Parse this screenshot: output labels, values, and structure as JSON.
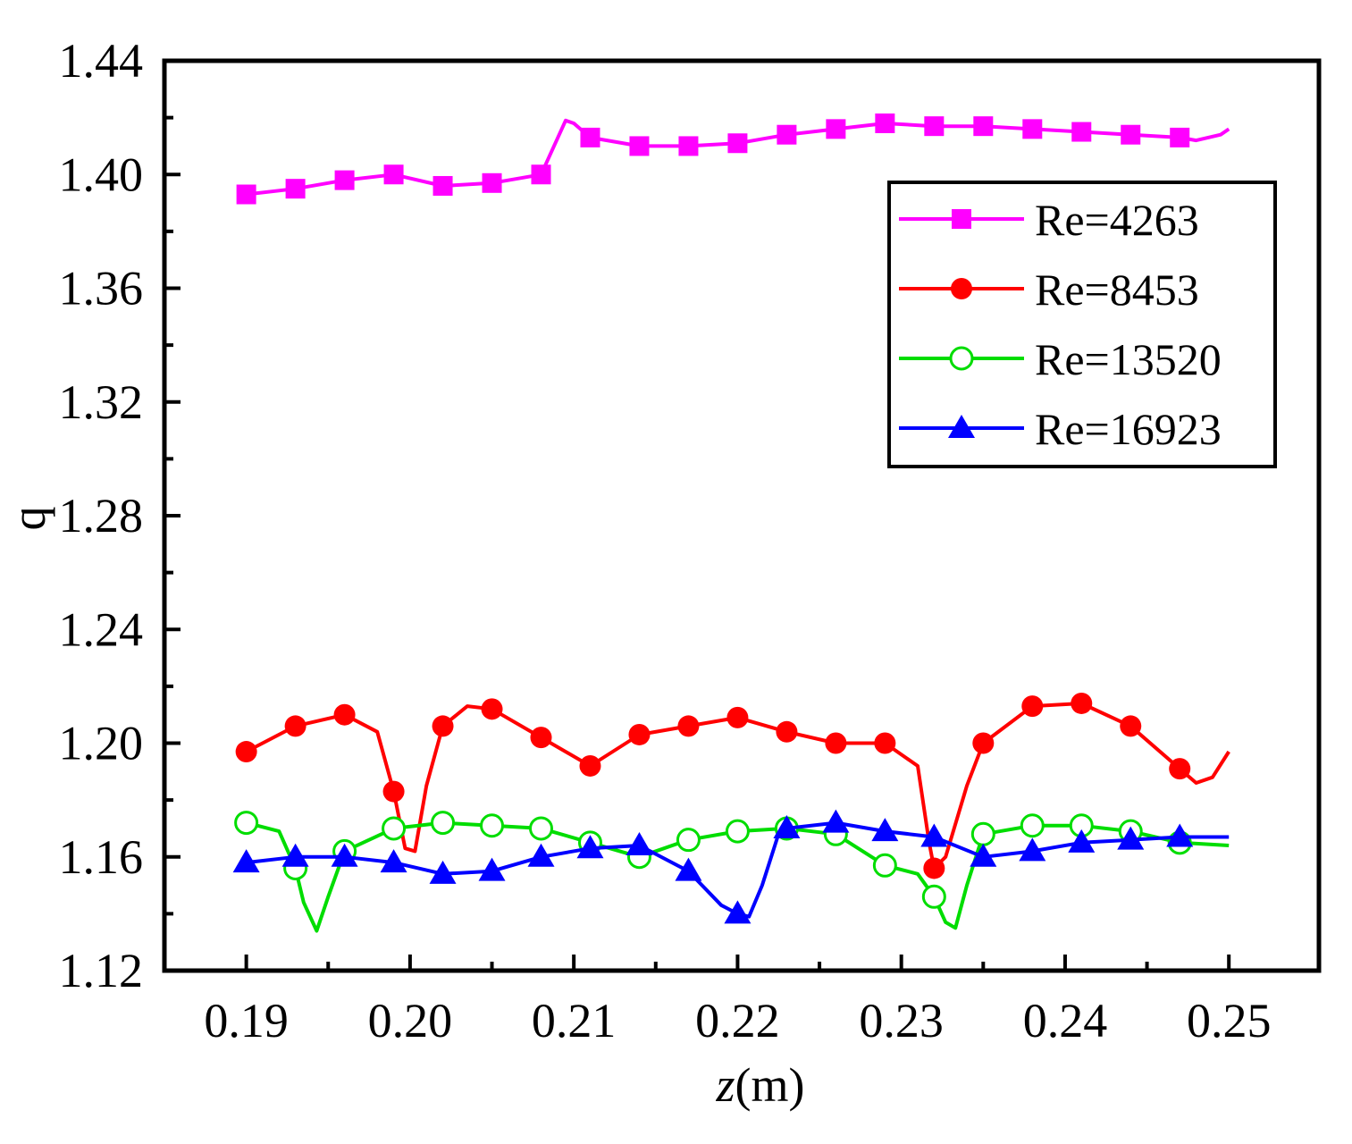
{
  "chart_data": {
    "type": "line",
    "title": "",
    "xlabel_italic": "z",
    "xlabel_unit": "(m)",
    "ylabel": "q",
    "xlim": [
      0.185,
      0.2555
    ],
    "ylim": [
      1.12,
      1.44
    ],
    "xticks": [
      0.19,
      0.2,
      0.21,
      0.22,
      0.23,
      0.24,
      0.25
    ],
    "xtick_labels": [
      "0.19",
      "0.20",
      "0.21",
      "0.22",
      "0.23",
      "0.24",
      "0.25"
    ],
    "yticks": [
      1.12,
      1.16,
      1.2,
      1.24,
      1.28,
      1.32,
      1.36,
      1.4,
      1.44
    ],
    "ytick_labels": [
      "1.12",
      "1.16",
      "1.20",
      "1.24",
      "1.28",
      "1.32",
      "1.36",
      "1.40",
      "1.44"
    ],
    "legend_position": "top-right",
    "series": [
      {
        "name": "Re=4263",
        "color": "#ff00ff",
        "marker": "square",
        "line_x": [
          0.19,
          0.193,
          0.196,
          0.199,
          0.202,
          0.205,
          0.208,
          0.2095,
          0.21,
          0.211,
          0.214,
          0.217,
          0.22,
          0.223,
          0.226,
          0.229,
          0.232,
          0.235,
          0.238,
          0.241,
          0.244,
          0.247,
          0.248,
          0.2495,
          0.25
        ],
        "line_y": [
          1.393,
          1.395,
          1.398,
          1.4,
          1.396,
          1.397,
          1.4,
          1.419,
          1.418,
          1.413,
          1.41,
          1.41,
          1.411,
          1.414,
          1.416,
          1.418,
          1.417,
          1.417,
          1.416,
          1.415,
          1.414,
          1.413,
          1.412,
          1.414,
          1.416
        ],
        "marker_x": [
          0.19,
          0.193,
          0.196,
          0.199,
          0.202,
          0.205,
          0.208,
          0.211,
          0.214,
          0.217,
          0.22,
          0.223,
          0.226,
          0.229,
          0.232,
          0.235,
          0.238,
          0.241,
          0.244,
          0.247
        ],
        "marker_y": [
          1.393,
          1.395,
          1.398,
          1.4,
          1.396,
          1.397,
          1.4,
          1.413,
          1.41,
          1.41,
          1.411,
          1.414,
          1.416,
          1.418,
          1.417,
          1.417,
          1.416,
          1.415,
          1.414,
          1.413
        ]
      },
      {
        "name": "Re=8453",
        "color": "#ff0000",
        "marker": "circle",
        "line_x": [
          0.19,
          0.193,
          0.196,
          0.198,
          0.199,
          0.1997,
          0.2003,
          0.201,
          0.202,
          0.2035,
          0.205,
          0.208,
          0.211,
          0.214,
          0.217,
          0.22,
          0.223,
          0.226,
          0.229,
          0.231,
          0.2317,
          0.232,
          0.2327,
          0.234,
          0.235,
          0.238,
          0.241,
          0.244,
          0.247,
          0.248,
          0.249,
          0.25
        ],
        "line_y": [
          1.197,
          1.206,
          1.21,
          1.204,
          1.183,
          1.163,
          1.162,
          1.185,
          1.206,
          1.213,
          1.212,
          1.202,
          1.192,
          1.203,
          1.206,
          1.209,
          1.204,
          1.2,
          1.2,
          1.192,
          1.165,
          1.156,
          1.16,
          1.185,
          1.2,
          1.213,
          1.214,
          1.206,
          1.191,
          1.186,
          1.188,
          1.197
        ],
        "marker_x": [
          0.19,
          0.193,
          0.196,
          0.199,
          0.202,
          0.205,
          0.208,
          0.211,
          0.214,
          0.217,
          0.22,
          0.223,
          0.226,
          0.229,
          0.232,
          0.235,
          0.238,
          0.241,
          0.244,
          0.247
        ],
        "marker_y": [
          1.197,
          1.206,
          1.21,
          1.183,
          1.206,
          1.212,
          1.202,
          1.192,
          1.203,
          1.206,
          1.209,
          1.204,
          1.2,
          1.2,
          1.156,
          1.2,
          1.213,
          1.214,
          1.206,
          1.191
        ]
      },
      {
        "name": "Re=13520",
        "color": "#00dd00",
        "marker": "open-circle",
        "line_x": [
          0.19,
          0.192,
          0.193,
          0.1935,
          0.1943,
          0.195,
          0.196,
          0.199,
          0.202,
          0.205,
          0.208,
          0.211,
          0.214,
          0.217,
          0.22,
          0.223,
          0.226,
          0.229,
          0.231,
          0.232,
          0.2327,
          0.2333,
          0.234,
          0.235,
          0.238,
          0.241,
          0.244,
          0.247,
          0.25
        ],
        "line_y": [
          1.172,
          1.169,
          1.156,
          1.144,
          1.134,
          1.146,
          1.162,
          1.17,
          1.172,
          1.171,
          1.17,
          1.165,
          1.16,
          1.166,
          1.169,
          1.17,
          1.168,
          1.157,
          1.154,
          1.146,
          1.137,
          1.135,
          1.15,
          1.168,
          1.171,
          1.171,
          1.169,
          1.165,
          1.164
        ],
        "marker_x": [
          0.19,
          0.193,
          0.196,
          0.199,
          0.202,
          0.205,
          0.208,
          0.211,
          0.214,
          0.217,
          0.22,
          0.223,
          0.226,
          0.229,
          0.232,
          0.235,
          0.238,
          0.241,
          0.244,
          0.247
        ],
        "marker_y": [
          1.172,
          1.156,
          1.162,
          1.17,
          1.172,
          1.171,
          1.17,
          1.165,
          1.16,
          1.166,
          1.169,
          1.17,
          1.168,
          1.157,
          1.146,
          1.168,
          1.171,
          1.171,
          1.169,
          1.165
        ]
      },
      {
        "name": "Re=16923",
        "color": "#0000ff",
        "marker": "triangle",
        "line_x": [
          0.19,
          0.193,
          0.196,
          0.199,
          0.202,
          0.205,
          0.208,
          0.211,
          0.214,
          0.217,
          0.219,
          0.22,
          0.2207,
          0.2215,
          0.2225,
          0.223,
          0.226,
          0.229,
          0.232,
          0.235,
          0.238,
          0.241,
          0.244,
          0.247,
          0.25
        ],
        "line_y": [
          1.158,
          1.16,
          1.16,
          1.158,
          1.154,
          1.155,
          1.16,
          1.163,
          1.164,
          1.155,
          1.143,
          1.14,
          1.139,
          1.15,
          1.168,
          1.17,
          1.172,
          1.169,
          1.167,
          1.16,
          1.162,
          1.165,
          1.166,
          1.167,
          1.167
        ],
        "marker_x": [
          0.19,
          0.193,
          0.196,
          0.199,
          0.202,
          0.205,
          0.208,
          0.211,
          0.214,
          0.217,
          0.22,
          0.223,
          0.226,
          0.229,
          0.232,
          0.235,
          0.238,
          0.241,
          0.244,
          0.247
        ],
        "marker_y": [
          1.158,
          1.16,
          1.16,
          1.158,
          1.154,
          1.155,
          1.16,
          1.163,
          1.164,
          1.155,
          1.14,
          1.17,
          1.172,
          1.169,
          1.167,
          1.16,
          1.162,
          1.165,
          1.166,
          1.167
        ]
      }
    ]
  }
}
